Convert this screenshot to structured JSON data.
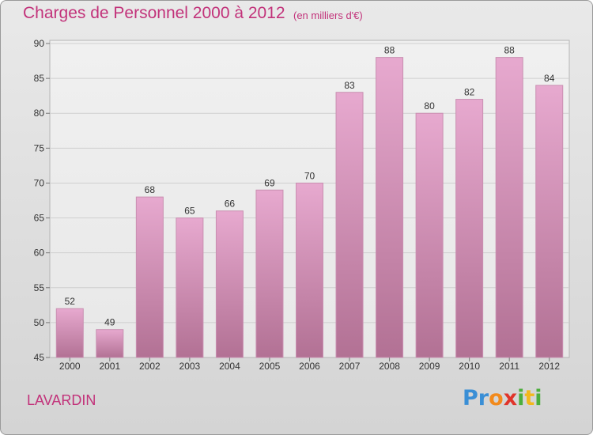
{
  "header": {
    "title": "Charges de Personnel 2000 à 2012",
    "subtitle": "(en milliers d'€)"
  },
  "footer": {
    "commune": "LAVARDIN",
    "logo_letters": [
      {
        "ch": "P",
        "color": "#3a8fd6"
      },
      {
        "ch": "r",
        "color": "#3a8fd6"
      },
      {
        "ch": "o",
        "color": "#f28a1c"
      },
      {
        "ch": "x",
        "color": "#e0342a"
      },
      {
        "ch": "i",
        "color": "#4cae3c"
      },
      {
        "ch": "t",
        "color": "#f2b81c"
      },
      {
        "ch": "i",
        "color": "#4cae3c"
      }
    ]
  },
  "chart_data": {
    "type": "bar",
    "categories": [
      "2000",
      "2001",
      "2002",
      "2003",
      "2004",
      "2005",
      "2006",
      "2007",
      "2008",
      "2009",
      "2010",
      "2011",
      "2012"
    ],
    "values": [
      52,
      49,
      68,
      65,
      66,
      69,
      70,
      83,
      88,
      80,
      82,
      88,
      84
    ],
    "title": "Charges de Personnel 2000 à 2012",
    "subtitle": "(en milliers d'€)",
    "ylim": [
      45,
      90
    ],
    "yticks": [
      45,
      50,
      55,
      60,
      65,
      70,
      75,
      80,
      85,
      90
    ],
    "grid": true,
    "bar_color": "#d68ab4"
  }
}
